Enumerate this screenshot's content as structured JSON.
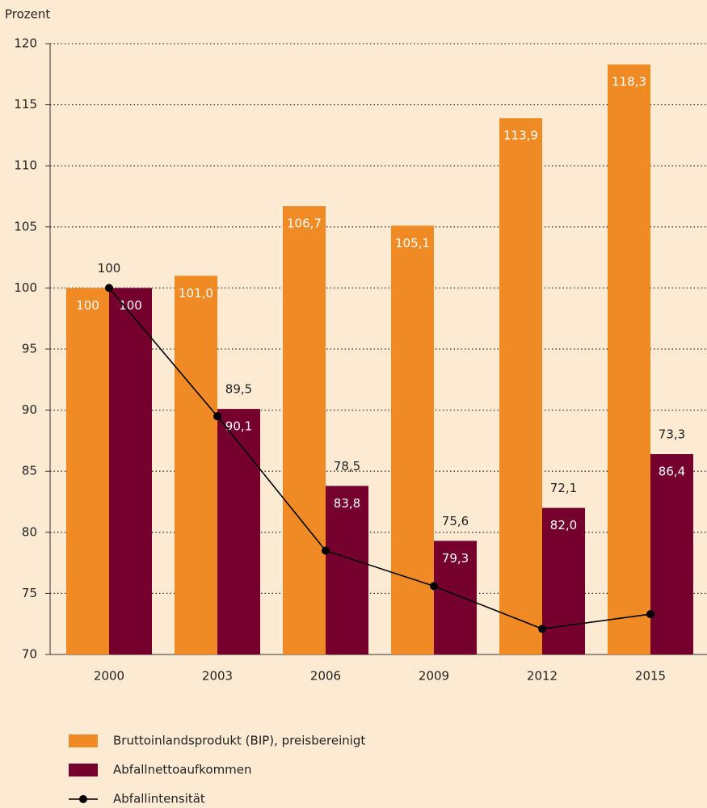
{
  "chart_data": {
    "type": "bar",
    "y_axis_label": "Prozent",
    "categories": [
      "2000",
      "2003",
      "2006",
      "2009",
      "2012",
      "2015"
    ],
    "series": [
      {
        "name": "Bruttoinlandsprodukt (BIP), preisbereinigt",
        "type": "bar",
        "color": "#f08a24",
        "values": [
          100,
          101.0,
          106.7,
          105.1,
          113.9,
          118.3
        ],
        "value_labels": [
          "100",
          "101,0",
          "106,7",
          "105,1",
          "113,9",
          "118,3"
        ]
      },
      {
        "name": "Abfallnettoaufkommen",
        "type": "bar",
        "color": "#76002d",
        "values": [
          100,
          90.1,
          83.8,
          79.3,
          82.0,
          86.4
        ],
        "value_labels": [
          "100",
          "90,1",
          "83,8",
          "79,3",
          "82,0",
          "86,4"
        ]
      },
      {
        "name": "Abfallintensität",
        "type": "line",
        "color": "#000000",
        "values": [
          100,
          89.5,
          78.5,
          75.6,
          72.1,
          73.3
        ],
        "value_labels": [
          "100",
          "89,5",
          "78,5",
          "75,6",
          "72,1",
          "73,3"
        ]
      }
    ],
    "ylim": [
      70,
      120
    ],
    "yticks": [
      70,
      75,
      80,
      85,
      90,
      95,
      100,
      105,
      110,
      115,
      120
    ],
    "grid": true,
    "legend": "bottom"
  }
}
